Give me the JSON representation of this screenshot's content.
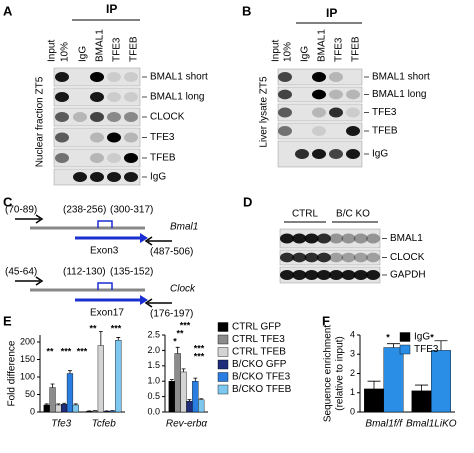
{
  "panels": {
    "a": {
      "letter": "A",
      "ip": "IP",
      "input": "Input",
      "lanes": [
        "10%",
        "IgG",
        "BMAL1",
        "TFE3",
        "TFEB"
      ],
      "side": "Nuclear fraction ZT5",
      "bands": [
        "BMAL1 short",
        "BMAL1 long",
        "CLOCK",
        "TFE3",
        "TFEB",
        "IgG"
      ]
    },
    "b": {
      "letter": "B",
      "ip": "IP",
      "input": "Input",
      "lanes": [
        "10%",
        "IgG",
        "BMAL1",
        "TFE3",
        "TFEB"
      ],
      "side": "Liver lysate ZT5",
      "bands": [
        "BMAL1 short",
        "BMAL1 long",
        "TFE3",
        "TFEB",
        "IgG"
      ]
    },
    "c": {
      "letter": "C",
      "genes": [
        {
          "name": "Bmal1",
          "exon": "Exon3",
          "primers": [
            "(70-89)",
            "(238-256)",
            "(300-317)",
            "(487-506)"
          ]
        },
        {
          "name": "Clock",
          "exon": "Exon17",
          "primers": [
            "(45-64)",
            "(112-130)",
            "(135-152)",
            "(176-197)"
          ]
        }
      ]
    },
    "d": {
      "letter": "D",
      "groups": [
        "CTRL",
        "B/C KO"
      ],
      "bands": [
        "BMAL1",
        "CLOCK",
        "GAPDH"
      ]
    }
  },
  "chart_data": [
    {
      "type": "bar",
      "letter": "E",
      "ylabel": "Fold difference",
      "categories": [
        "Tfe3",
        "Tcfeb"
      ],
      "ylim": [
        0,
        220
      ],
      "yticks": [
        0,
        50,
        100,
        150,
        200
      ],
      "series": [
        {
          "name": "CTRL GFP",
          "color": "#000000",
          "values": [
            20,
            2
          ],
          "errors": [
            3,
            1
          ]
        },
        {
          "name": "CTRL TFE3",
          "color": "#8c8c8c",
          "values": [
            70,
            3
          ],
          "errors": [
            10,
            1
          ]
        },
        {
          "name": "CTRL TFEB",
          "color": "#d4d4d4",
          "values": [
            20,
            190
          ],
          "errors": [
            3,
            40
          ]
        },
        {
          "name": "B/CKO GFP",
          "color": "#1f2d7a",
          "values": [
            22,
            2
          ],
          "errors": [
            3,
            1
          ]
        },
        {
          "name": "B/CKO TFE3",
          "color": "#2a7de1",
          "values": [
            110,
            3
          ],
          "errors": [
            8,
            1
          ]
        },
        {
          "name": "B/CKO TFEB",
          "color": "#7ec8f0",
          "values": [
            20,
            205
          ],
          "errors": [
            3,
            8
          ]
        }
      ],
      "annotations": [
        "**",
        "***",
        "***",
        "**",
        "***"
      ]
    },
    {
      "type": "bar",
      "categories": [
        "Rev-erbα"
      ],
      "ylim": [
        0,
        2.5
      ],
      "yticks": [
        {
          "value": 0,
          "label": "0.0"
        },
        0.5,
        {
          "value": 1,
          "label": "1.0"
        },
        1.5,
        {
          "value": 2,
          "label": "2.0"
        },
        2.5
      ],
      "series": [
        {
          "color": "#000000",
          "values": [
            1.0
          ],
          "errors": [
            0.05
          ]
        },
        {
          "color": "#8c8c8c",
          "values": [
            1.9
          ],
          "errors": [
            0.2
          ]
        },
        {
          "color": "#d4d4d4",
          "values": [
            1.3
          ],
          "errors": [
            0.1
          ]
        },
        {
          "color": "#1f2d7a",
          "values": [
            0.35
          ],
          "errors": [
            0.05
          ]
        },
        {
          "color": "#2a7de1",
          "values": [
            1.0
          ],
          "errors": [
            0.1
          ]
        },
        {
          "color": "#7ec8f0",
          "values": [
            0.4
          ],
          "errors": [
            0.03
          ]
        }
      ],
      "annotations": [
        "***",
        "**",
        "*",
        "***",
        "***"
      ]
    },
    {
      "type": "bar",
      "letter": "F",
      "ylabel": [
        "Sequence enrichment",
        "(relative to input)"
      ],
      "categories": [
        "Bmal1f/f",
        "Bmal1LiKO"
      ],
      "ylim": [
        0,
        4
      ],
      "yticks": [
        0,
        1,
        2,
        3,
        4
      ],
      "series": [
        {
          "name": "IgG",
          "color": "#000000",
          "values": [
            1.2,
            1.1
          ],
          "errors": [
            0.4,
            0.3
          ]
        },
        {
          "name": "TFE3",
          "color": "#2a8ee6",
          "values": [
            3.35,
            3.2
          ],
          "errors": [
            0.2,
            0.5
          ]
        }
      ],
      "annotations": [
        "*",
        "*"
      ]
    }
  ]
}
